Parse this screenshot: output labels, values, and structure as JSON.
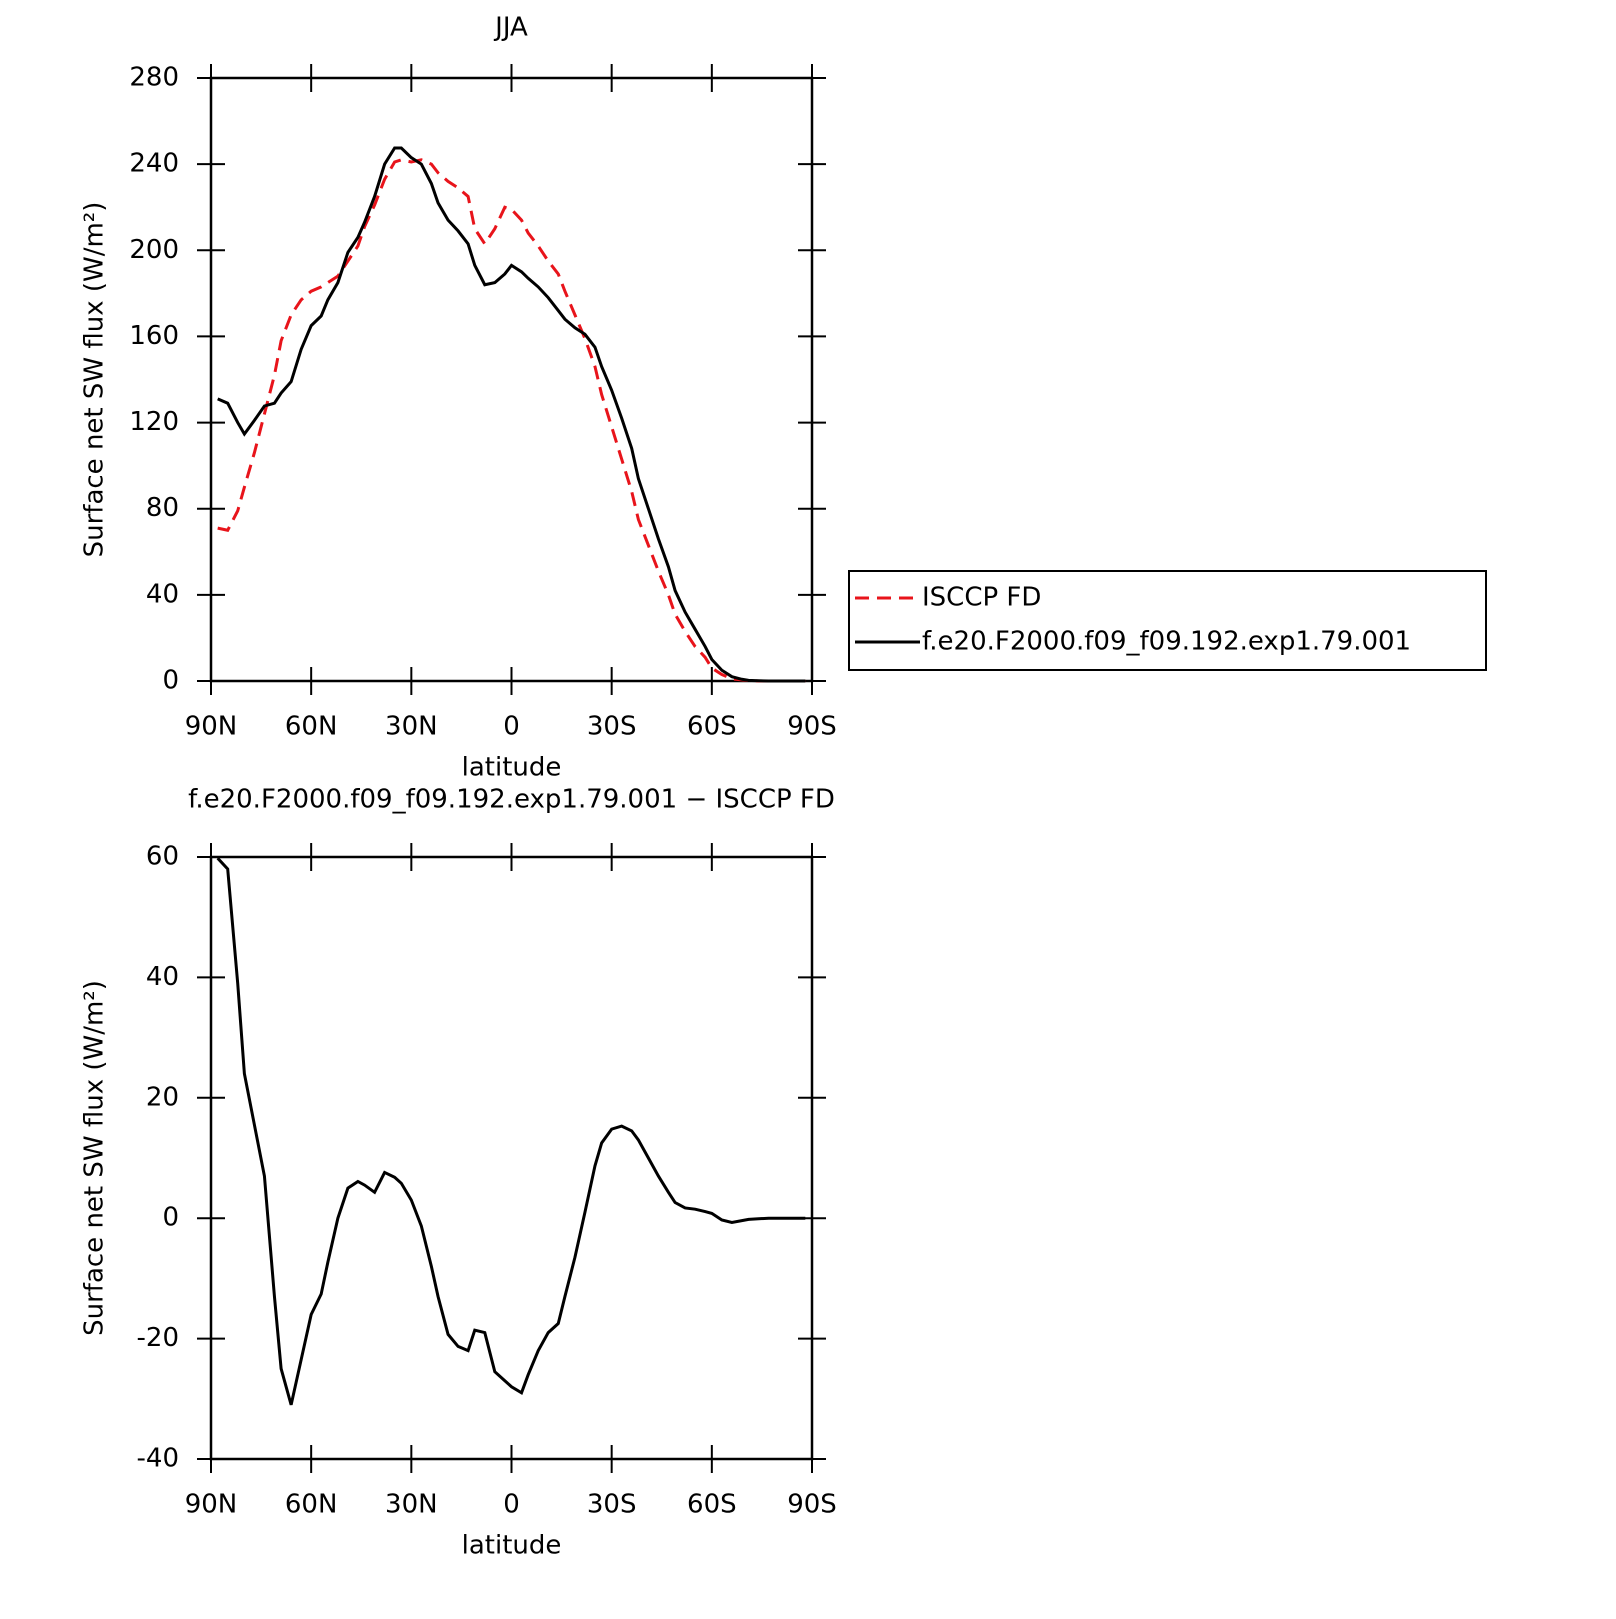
{
  "chart_data": [
    {
      "type": "line",
      "title": "JJA",
      "xlabel": "latitude",
      "ylabel": "Surface net SW flux (W/m²)",
      "x": [
        88,
        85,
        82,
        80,
        77,
        74,
        71,
        69,
        66,
        63,
        60,
        57,
        55,
        52,
        49,
        46,
        44,
        41,
        38,
        35,
        33,
        30,
        27,
        24,
        22,
        19,
        16,
        13,
        11,
        8,
        5,
        2,
        0,
        -3,
        -5,
        -8,
        -11,
        -14,
        -16,
        -19,
        -22,
        -25,
        -27,
        -30,
        -33,
        -36,
        -38,
        -41,
        -44,
        -47,
        -49,
        -52,
        -55,
        -58,
        -60,
        -63,
        -66,
        -69,
        -71,
        -74,
        -77,
        -80,
        -82,
        -85,
        -88
      ],
      "series": [
        {
          "name": "ISCCP FD",
          "color": "#e8141b",
          "dashed": true,
          "values": [
            71,
            70,
            79,
            90,
            106,
            124,
            142,
            158,
            170,
            177,
            181,
            183,
            185,
            188,
            195,
            202,
            211,
            221,
            233,
            241,
            242,
            241,
            242,
            240,
            236,
            232,
            229,
            225,
            210,
            203,
            210,
            220,
            219,
            214,
            208,
            202,
            195,
            189,
            181,
            170,
            159,
            146,
            133,
            118,
            103,
            88,
            75,
            63,
            51,
            40,
            31,
            23,
            16,
            11,
            6,
            3,
            1,
            0.5,
            0.2,
            0,
            0,
            0,
            0,
            0,
            0
          ]
        },
        {
          "name": "f.e20.F2000.f09_f09.192.exp1.79.001",
          "color": "#000000",
          "dashed": false,
          "values": [
            131,
            129,
            120,
            114.7,
            121,
            127.7,
            129,
            133.7,
            139,
            154,
            165,
            169.5,
            177,
            185,
            199,
            206,
            213,
            225,
            240,
            247.5,
            247.5,
            243,
            240,
            231,
            222,
            214,
            209,
            203,
            193,
            184,
            185,
            189,
            193,
            190,
            187,
            183,
            178,
            172,
            168,
            164,
            161,
            155,
            146,
            135,
            122,
            108,
            94,
            80,
            66,
            53,
            42,
            32,
            24,
            16,
            10,
            5,
            2,
            0.8,
            0.3,
            0.1,
            0,
            0,
            0,
            0,
            0
          ]
        }
      ],
      "xlim": [
        90,
        -90
      ],
      "xticks": [
        {
          "value": 90,
          "label": "90N"
        },
        {
          "value": 60,
          "label": "60N"
        },
        {
          "value": 30,
          "label": "30N"
        },
        0,
        {
          "value": -30,
          "label": "30S"
        },
        {
          "value": -60,
          "label": "60S"
        },
        {
          "value": -90,
          "label": "90S"
        }
      ],
      "ylim": [
        0,
        280
      ],
      "yticks": [
        0,
        40,
        80,
        120,
        160,
        200,
        240,
        280
      ],
      "legend": "right"
    },
    {
      "type": "line",
      "title": "f.e20.F2000.f09_f09.192.exp1.79.001 − ISCCP FD",
      "xlabel": "latitude",
      "ylabel": "Surface net SW flux (W/m²)",
      "x": [
        88,
        85,
        82,
        80,
        77,
        74,
        71,
        69,
        66,
        63,
        60,
        57,
        55,
        52,
        49,
        46,
        44,
        41,
        38,
        35,
        33,
        30,
        27,
        24,
        22,
        19,
        16,
        13,
        11,
        8,
        5,
        2,
        0,
        -3,
        -5,
        -8,
        -11,
        -14,
        -16,
        -19,
        -22,
        -25,
        -27,
        -30,
        -33,
        -36,
        -38,
        -41,
        -44,
        -47,
        -49,
        -52,
        -55,
        -58,
        -60,
        -63,
        -66,
        -69,
        -71,
        -74,
        -77,
        -80,
        -82,
        -85,
        -88
      ],
      "values": [
        59.8,
        58,
        39,
        24,
        15.5,
        7,
        -13,
        -25,
        -31,
        -23.5,
        -16,
        -12.6,
        -7.3,
        0,
        5,
        6.1,
        5.5,
        4.3,
        7.6,
        6.8,
        5.8,
        3,
        -1.3,
        -8,
        -13,
        -19.3,
        -21.3,
        -22,
        -18.6,
        -19,
        -25.5,
        -27,
        -28,
        -29,
        -26,
        -22,
        -19,
        -17.5,
        -13,
        -6.5,
        1,
        8.7,
        12.5,
        14.8,
        15.3,
        14.5,
        13,
        10,
        7,
        4.3,
        2.6,
        1.7,
        1.5,
        1.1,
        0.8,
        -0.3,
        -0.7,
        -0.4,
        -0.2,
        -0.1,
        0,
        0,
        0,
        0,
        0
      ],
      "color": "#000000",
      "xlim": [
        90,
        -90
      ],
      "xticks": [
        {
          "value": 90,
          "label": "90N"
        },
        {
          "value": 60,
          "label": "60N"
        },
        {
          "value": 30,
          "label": "30N"
        },
        0,
        {
          "value": -30,
          "label": "30S"
        },
        {
          "value": -60,
          "label": "60S"
        },
        {
          "value": -90,
          "label": "90S"
        }
      ],
      "ylim": [
        -40,
        60
      ],
      "yticks": [
        -40,
        -20,
        0,
        20,
        40,
        60
      ]
    }
  ]
}
